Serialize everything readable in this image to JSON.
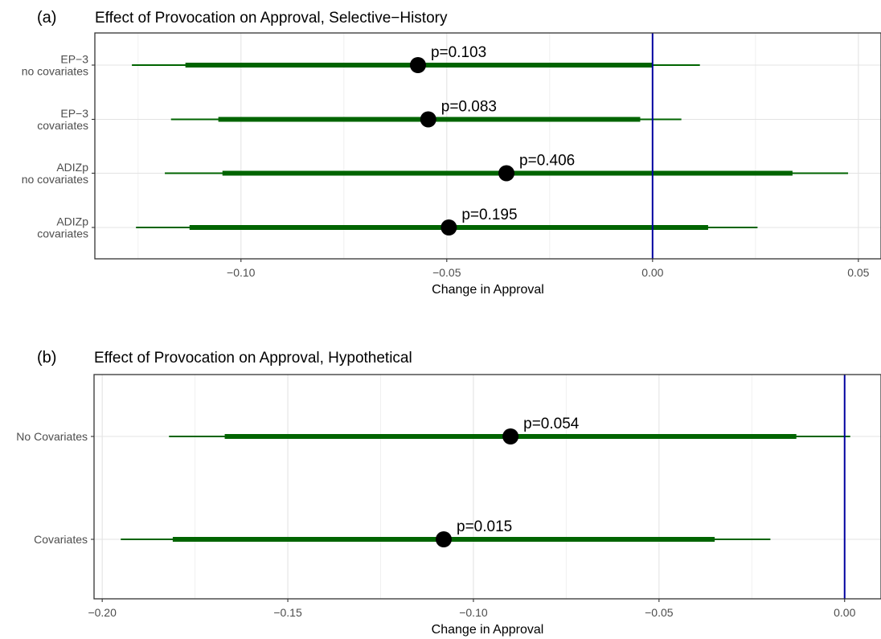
{
  "chart_data": [
    {
      "type": "forest",
      "panel_label": "(a)",
      "title": "Effect of Provocation on Approval, Selective−History",
      "xlabel": "Change in Approval",
      "ylabel": "",
      "xlim": [
        -0.1355,
        0.0555
      ],
      "xticks": [
        -0.1,
        -0.05,
        0.0,
        0.05
      ],
      "xtick_labels": [
        "−0.10",
        "−0.05",
        "0.00",
        "0.05"
      ],
      "reference_line": 0.0,
      "grid": true,
      "colors": {
        "interval": "#006400",
        "point": "#000000",
        "reference": "#0000a0"
      },
      "rows": [
        {
          "label_lines": [
            "EP−3",
            "no covariates"
          ],
          "estimate": -0.057,
          "inner": [
            -0.1135,
            0.0
          ],
          "outer": [
            -0.1265,
            0.0115
          ],
          "p_label": "p=0.103"
        },
        {
          "label_lines": [
            "EP−3",
            "covariates"
          ],
          "estimate": -0.0545,
          "inner": [
            -0.1055,
            -0.003
          ],
          "outer": [
            -0.117,
            0.007
          ],
          "p_label": "p=0.083"
        },
        {
          "label_lines": [
            "ADIZp",
            "no covariates"
          ],
          "estimate": -0.0355,
          "inner": [
            -0.1045,
            0.034
          ],
          "outer": [
            -0.1185,
            0.0475
          ],
          "p_label": "p=0.406"
        },
        {
          "label_lines": [
            "ADIZp",
            "covariates"
          ],
          "estimate": -0.0495,
          "inner": [
            -0.1125,
            0.0135
          ],
          "outer": [
            -0.1255,
            0.0255
          ],
          "p_label": "p=0.195"
        }
      ]
    },
    {
      "type": "forest",
      "panel_label": "(b)",
      "title": "Effect of Provocation on Approval, Hypothetical",
      "xlabel": "Change in Approval",
      "ylabel": "",
      "xlim": [
        -0.2022,
        0.0098
      ],
      "xticks": [
        -0.2,
        -0.15,
        -0.1,
        -0.05,
        0.0
      ],
      "xtick_labels": [
        "−0.20",
        "−0.15",
        "−0.10",
        "−0.05",
        "0.00"
      ],
      "reference_line": 0.0,
      "grid": true,
      "colors": {
        "interval": "#006400",
        "point": "#000000",
        "reference": "#0000a0"
      },
      "rows": [
        {
          "label_lines": [
            "No Covariates"
          ],
          "estimate": -0.09,
          "inner": [
            -0.167,
            -0.013
          ],
          "outer": [
            -0.182,
            0.0015
          ],
          "p_label": "p=0.054"
        },
        {
          "label_lines": [
            "Covariates"
          ],
          "estimate": -0.108,
          "inner": [
            -0.181,
            -0.035
          ],
          "outer": [
            -0.195,
            -0.02
          ],
          "p_label": "p=0.015"
        }
      ]
    }
  ]
}
